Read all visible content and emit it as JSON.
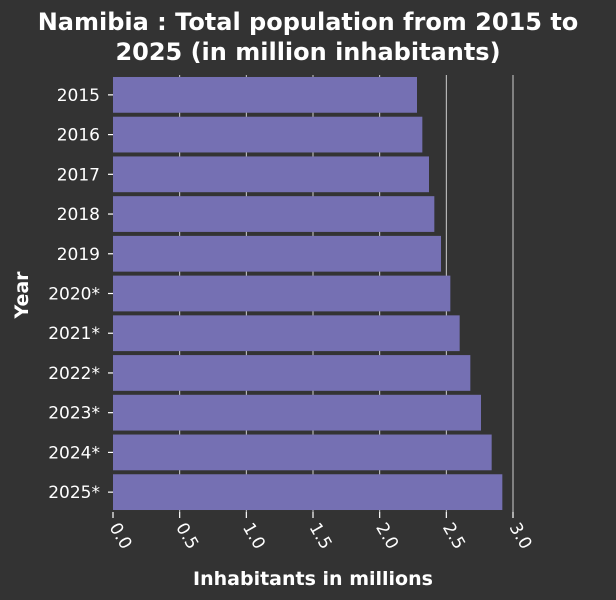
{
  "chart_data": {
    "type": "bar",
    "orientation": "horizontal",
    "title": "Namibia : Total population from 2015 to 2025 (in million inhabitants)",
    "title_lines": [
      "Namibia : Total population from 2015 to",
      "2025 (in million inhabitants)"
    ],
    "xlabel": "Inhabitants in millions",
    "ylabel": "Year",
    "categories": [
      "2015",
      "2016",
      "2017",
      "2018",
      "2019",
      "2020*",
      "2021*",
      "2022*",
      "2023*",
      "2024*",
      "2025*"
    ],
    "values": [
      2.28,
      2.32,
      2.37,
      2.41,
      2.46,
      2.53,
      2.6,
      2.68,
      2.76,
      2.84,
      2.92
    ],
    "xlim": [
      0,
      3.0
    ],
    "xticks": [
      "0.0",
      "0.5",
      "1.0",
      "1.5",
      "2.0",
      "2.5",
      "3.0"
    ],
    "grid": true,
    "bar_color": "#7570b3",
    "background_color": "#333333",
    "text_color": "#ffffff"
  }
}
